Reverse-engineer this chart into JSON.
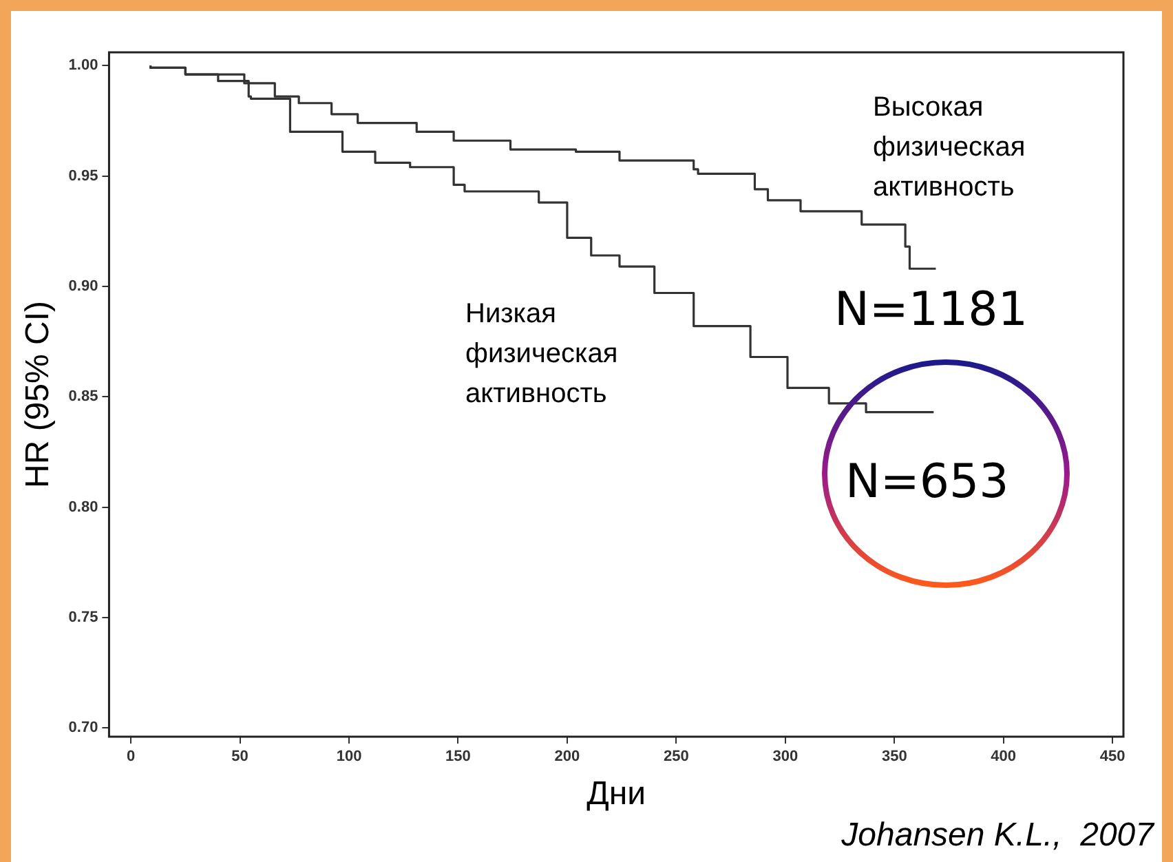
{
  "chart_data": {
    "type": "step",
    "xlabel": "Дни",
    "ylabel": "HR (95% CI)",
    "xlim": [
      -10,
      455
    ],
    "xticks": [
      0,
      50,
      100,
      150,
      200,
      250,
      300,
      350,
      400,
      450
    ],
    "ylim": [
      0.696,
      1.006
    ],
    "yticks": [
      {
        "value": 0.7,
        "label": "0.70"
      },
      {
        "value": 0.75,
        "label": "0.75"
      },
      {
        "value": 0.8,
        "label": "0.80"
      },
      {
        "value": 0.85,
        "label": "0.85"
      },
      {
        "value": 0.9,
        "label": "0.90"
      },
      {
        "value": 0.95,
        "label": "0.95"
      },
      {
        "value": 1,
        "label": "1.00"
      }
    ],
    "grid": false,
    "legend": false,
    "marker": "none",
    "line_style": "solid",
    "series": [
      {
        "name": "Высокая физическая активность",
        "color": "#333333",
        "x": [
          9,
          25,
          52,
          66,
          77,
          92,
          104,
          131,
          148,
          174,
          204,
          224,
          258,
          260,
          286,
          292,
          307,
          335,
          355,
          357,
          369
        ],
        "values": [
          1.0,
          0.999,
          0.996,
          0.992,
          0.986,
          0.983,
          0.978,
          0.974,
          0.97,
          0.966,
          0.962,
          0.961,
          0.957,
          0.953,
          0.951,
          0.944,
          0.939,
          0.934,
          0.928,
          0.918,
          0.908
        ]
      },
      {
        "name": "Низкая физическая активность",
        "color": "#333333",
        "x": [
          9,
          25,
          40,
          54,
          55,
          73,
          97,
          112,
          128,
          148,
          153,
          187,
          200,
          211,
          224,
          240,
          258,
          284,
          301,
          320,
          337,
          340,
          368
        ],
        "values": [
          1.0,
          0.999,
          0.996,
          0.993,
          0.986,
          0.985,
          0.97,
          0.961,
          0.956,
          0.954,
          0.946,
          0.943,
          0.938,
          0.922,
          0.914,
          0.909,
          0.897,
          0.882,
          0.868,
          0.854,
          0.847,
          0.843,
          0.843
        ]
      }
    ],
    "annotations": [
      "N=1181",
      "N=653",
      "Johansen K.L.,  2007"
    ]
  }
}
